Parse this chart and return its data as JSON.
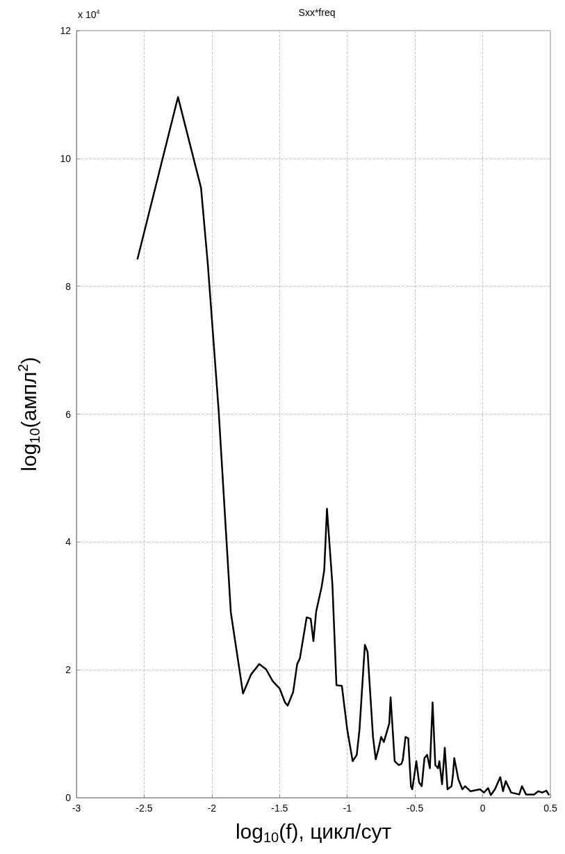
{
  "chart_data": {
    "type": "line",
    "title": "Sxx*freq",
    "xlabel": "log$_{10}$(f), цикл/сут",
    "ylabel": "log$_{10}$(ампл$^{2}$)",
    "annotations": [
      "x 10$^{4}$"
    ],
    "xlim": [
      -3,
      0.5
    ],
    "xticks": [
      -3,
      -2.5,
      -2,
      -1.5,
      -1,
      -0.5,
      0,
      0.5
    ],
    "ylim": [
      0,
      12
    ],
    "yticks": [
      0,
      2,
      4,
      6,
      8,
      10,
      12
    ],
    "grid": true,
    "marker": "none",
    "line_style": "solid",
    "series": [
      {
        "color": "#000000",
        "x": [
          -2.55,
          -2.25,
          -2.08,
          -2.03,
          -1.95,
          -1.86,
          -1.77,
          -1.71,
          -1.65,
          -1.6,
          -1.55,
          -1.5,
          -1.46,
          -1.44,
          -1.4,
          -1.37,
          -1.35,
          -1.3,
          -1.27,
          -1.25,
          -1.23,
          -1.19,
          -1.17,
          -1.15,
          -1.11,
          -1.08,
          -1.04,
          -1.0,
          -0.96,
          -0.93,
          -0.91,
          -0.87,
          -0.85,
          -0.81,
          -0.79,
          -0.77,
          -0.75,
          -0.73,
          -0.69,
          -0.68,
          -0.65,
          -0.62,
          -0.6,
          -0.59,
          -0.57,
          -0.55,
          -0.53,
          -0.52,
          -0.49,
          -0.47,
          -0.45,
          -0.43,
          -0.41,
          -0.39,
          -0.37,
          -0.35,
          -0.33,
          -0.32,
          -0.3,
          -0.28,
          -0.26,
          -0.23,
          -0.22,
          -0.21,
          -0.18,
          -0.15,
          -0.13,
          -0.09,
          -0.02,
          0.01,
          0.04,
          0.06,
          0.09,
          0.13,
          0.15,
          0.17,
          0.21,
          0.27,
          0.29,
          0.32,
          0.38,
          0.41,
          0.44,
          0.47,
          0.49
        ],
        "values": [
          8.42,
          10.96,
          9.54,
          8.35,
          6.06,
          2.9,
          1.63,
          1.93,
          2.09,
          2.01,
          1.82,
          1.71,
          1.49,
          1.44,
          1.65,
          2.09,
          2.18,
          2.82,
          2.8,
          2.45,
          2.91,
          3.29,
          3.56,
          4.52,
          3.34,
          1.76,
          1.75,
          1.06,
          0.57,
          0.67,
          1.06,
          2.39,
          2.28,
          0.95,
          0.6,
          0.76,
          0.95,
          0.87,
          1.16,
          1.57,
          0.57,
          0.51,
          0.53,
          0.59,
          0.95,
          0.93,
          0.18,
          0.13,
          0.57,
          0.24,
          0.18,
          0.62,
          0.67,
          0.46,
          1.49,
          0.51,
          0.46,
          0.57,
          0.21,
          0.78,
          0.13,
          0.18,
          0.35,
          0.62,
          0.29,
          0.13,
          0.18,
          0.1,
          0.13,
          0.08,
          0.15,
          0.04,
          0.13,
          0.32,
          0.1,
          0.26,
          0.08,
          0.05,
          0.18,
          0.05,
          0.05,
          0.1,
          0.08,
          0.11,
          0.04
        ]
      }
    ]
  }
}
